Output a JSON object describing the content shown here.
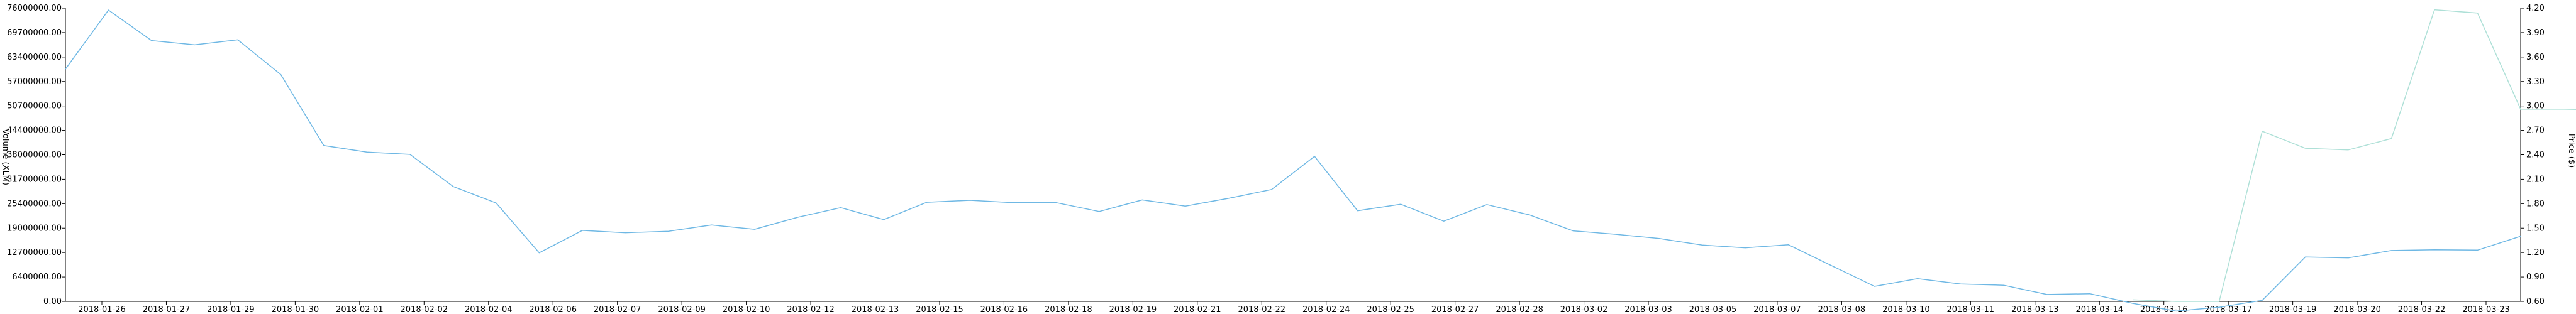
{
  "chart_data": {
    "type": "line",
    "x_ticks": [
      "2018-01-26",
      "2018-01-27",
      "2018-01-29",
      "2018-01-30",
      "2018-02-01",
      "2018-02-02",
      "2018-02-04",
      "2018-02-06",
      "2018-02-07",
      "2018-02-09",
      "2018-02-10",
      "2018-02-12",
      "2018-02-13",
      "2018-02-15",
      "2018-02-16",
      "2018-02-18",
      "2018-02-19",
      "2018-02-21",
      "2018-02-22",
      "2018-02-24",
      "2018-02-25",
      "2018-02-27",
      "2018-02-28",
      "2018-03-02",
      "2018-03-03",
      "2018-03-05",
      "2018-03-07",
      "2018-03-08",
      "2018-03-10",
      "2018-03-11",
      "2018-03-13",
      "2018-03-14",
      "2018-03-16",
      "2018-03-17",
      "2018-03-19",
      "2018-03-20",
      "2018-03-22",
      "2018-03-23"
    ],
    "y_left": {
      "label": "Volume (XLM)",
      "ylim": [
        0,
        76000000
      ],
      "ticks": [
        "0.00",
        "6400000.00",
        "12700000.00",
        "19000000.00",
        "25400000.00",
        "31700000.00",
        "38000000.00",
        "44400000.00",
        "50700000.00",
        "57000000.00",
        "63400000.00",
        "69700000.00",
        "76000000.00"
      ]
    },
    "y_right": {
      "label": "Price ($)",
      "ylim": [
        0.6,
        4.2
      ],
      "ticks": [
        "0.60",
        "0.90",
        "1.20",
        "1.50",
        "1.80",
        "2.10",
        "2.40",
        "2.70",
        "3.00",
        "3.30",
        "3.60",
        "3.90",
        "4.20"
      ]
    },
    "colors": {
      "volume": "#6fb8e4",
      "price": "#aee0d7"
    },
    "series": [
      {
        "key": "volume",
        "axis": "left",
        "x_start": 0,
        "values": [
          60200000,
          75500000,
          67600000,
          66500000,
          67800000,
          58800000,
          40400000,
          38700000,
          38100000,
          29800000,
          25500000,
          12600000,
          18400000,
          17800000,
          18200000,
          19800000,
          18700000,
          21800000,
          24300000,
          21200000,
          25700000,
          26200000,
          25600000,
          25600000,
          23300000,
          26300000,
          24700000,
          26700000,
          29000000,
          37600000,
          23500000,
          25200000,
          20800000,
          25100000,
          22400000,
          18300000,
          17400000,
          16300000,
          14600000,
          13900000,
          14700000,
          9300000,
          3900000,
          5900000,
          4500000,
          4200000,
          1800000,
          2000000,
          -500000,
          -2500000,
          -1500000,
          300000,
          11500000,
          11300000,
          13200000,
          13400000,
          13300000,
          16900000
        ]
      },
      {
        "key": "price",
        "axis": "right",
        "x_start": 48,
        "values": [
          0.62,
          0.6,
          0.6,
          2.69,
          2.48,
          2.46,
          2.6,
          4.18,
          4.14,
          2.96,
          2.96,
          2.95
        ]
      }
    ]
  }
}
